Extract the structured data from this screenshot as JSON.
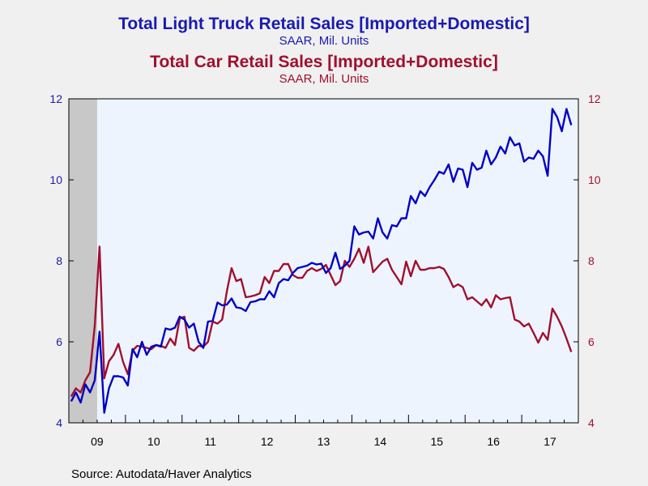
{
  "titles": {
    "series1_title": "Total Light Truck Retail Sales [Imported+Domestic]",
    "series1_subtitle": "SAAR, Mil. Units",
    "series2_title": "Total Car Retail Sales [Imported+Domestic]",
    "series2_subtitle": "SAAR, Mil. Units"
  },
  "source": "Source:  Autodata/Haver Analytics",
  "colors": {
    "truck": "#0000c8",
    "car": "#a0102e",
    "plot_bg": "#eef4fd",
    "recession": "#c8c8c8"
  },
  "chart_data": {
    "type": "line",
    "frequency": "monthly",
    "x_start": "2009-01",
    "x_range": [
      "2009-01",
      "2017-12"
    ],
    "x_tick_labels": [
      "09",
      "10",
      "11",
      "12",
      "13",
      "14",
      "15",
      "16",
      "17"
    ],
    "left_axis": {
      "ylim": [
        4,
        12
      ],
      "ticks": [
        4,
        6,
        8,
        10,
        12
      ],
      "color": "#1a1ab0"
    },
    "right_axis": {
      "ylim": [
        4,
        12
      ],
      "ticks": [
        4,
        6,
        8,
        10,
        12
      ],
      "color": "#a0102e"
    },
    "recession_shading": [
      "2009-01",
      "2009-06"
    ],
    "grid": false,
    "series": [
      {
        "name": "Total Light Truck Retail Sales [Imported+Domestic]",
        "axis": "left",
        "values": [
          4.53,
          4.75,
          4.5,
          4.95,
          4.75,
          5.05,
          6.25,
          4.25,
          4.85,
          5.15,
          5.15,
          5.12,
          4.92,
          5.82,
          5.62,
          6.0,
          5.68,
          5.88,
          5.92,
          5.88,
          6.33,
          6.3,
          6.35,
          6.62,
          6.55,
          6.35,
          6.45,
          6.0,
          5.85,
          6.5,
          6.52,
          6.97,
          6.9,
          6.92,
          7.07,
          6.85,
          6.83,
          6.76,
          6.98,
          7.0,
          7.05,
          7.05,
          7.25,
          7.1,
          7.45,
          7.55,
          7.52,
          7.7,
          7.82,
          7.85,
          7.88,
          7.95,
          7.91,
          7.93,
          7.7,
          7.82,
          8.2,
          7.8,
          7.88,
          8.0,
          8.85,
          8.65,
          8.7,
          8.72,
          8.55,
          9.05,
          8.7,
          8.55,
          8.88,
          8.85,
          9.05,
          9.05,
          9.6,
          9.42,
          9.72,
          9.6,
          9.82,
          10.0,
          10.2,
          10.15,
          10.38,
          9.95,
          10.28,
          10.25,
          9.82,
          10.42,
          10.25,
          10.3,
          10.72,
          10.38,
          10.55,
          10.82,
          10.65,
          11.05,
          10.85,
          10.9,
          10.45,
          10.55,
          10.52,
          10.72,
          10.58,
          10.1,
          11.75,
          11.55,
          11.2,
          11.75,
          11.35
        ]
      },
      {
        "name": "Total Car Retail Sales [Imported+Domestic]",
        "axis": "right",
        "values": [
          4.65,
          4.85,
          4.75,
          5.05,
          5.25,
          6.4,
          8.35,
          5.1,
          5.52,
          5.68,
          5.95,
          5.5,
          5.2,
          5.78,
          5.9,
          5.88,
          5.85,
          5.82,
          5.92,
          5.9,
          5.85,
          6.08,
          5.92,
          6.58,
          6.62,
          5.85,
          5.78,
          5.9,
          5.88,
          6.0,
          6.5,
          6.45,
          6.55,
          7.25,
          7.82,
          7.5,
          7.55,
          7.1,
          7.12,
          7.15,
          7.2,
          7.6,
          7.45,
          7.75,
          7.75,
          7.92,
          7.92,
          7.65,
          7.58,
          7.58,
          7.75,
          7.82,
          7.75,
          7.8,
          7.9,
          7.65,
          7.4,
          7.5,
          8.0,
          7.85,
          8.05,
          8.3,
          7.95,
          8.35,
          7.72,
          7.85,
          7.98,
          8.05,
          7.78,
          7.6,
          7.42,
          7.98,
          7.62,
          8.0,
          7.78,
          7.78,
          7.82,
          7.82,
          7.85,
          7.8,
          7.6,
          7.35,
          7.42,
          7.35,
          7.05,
          7.1,
          7.0,
          6.9,
          7.05,
          6.85,
          7.15,
          7.05,
          7.08,
          7.1,
          6.55,
          6.5,
          6.38,
          6.45,
          6.22,
          5.98,
          6.22,
          6.05,
          6.82,
          6.62,
          6.38,
          6.08,
          5.75
        ]
      }
    ]
  }
}
